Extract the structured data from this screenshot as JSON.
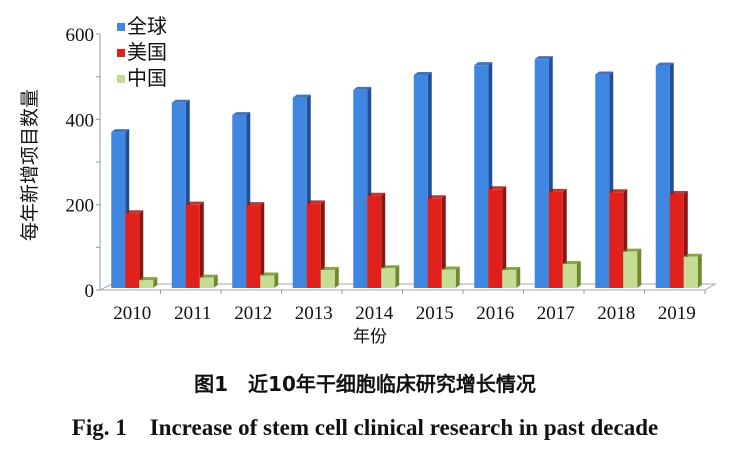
{
  "chart_data": {
    "type": "bar",
    "ylabel": "每年新增项目数量",
    "xlabel": "年份",
    "ylim": [
      0,
      600
    ],
    "yticks": [
      "0",
      "200",
      "400",
      "600"
    ],
    "categories": [
      "2010",
      "2011",
      "2012",
      "2013",
      "2014",
      "2015",
      "2016",
      "2017",
      "2018",
      "2019"
    ],
    "series": [
      {
        "name": "全球",
        "color": "#3f86e0",
        "values": [
          370,
          439,
          410,
          451,
          469,
          504,
          527,
          541,
          505,
          526
        ]
      },
      {
        "name": "美国",
        "color": "#e0201a",
        "values": [
          180,
          200,
          199,
          203,
          221,
          215,
          236,
          230,
          229,
          225
        ]
      },
      {
        "name": "中国",
        "color": "#c6dc94",
        "values": [
          23,
          29,
          34,
          47,
          51,
          48,
          47,
          61,
          90,
          78
        ]
      }
    ],
    "legend_position": "top-left",
    "grid": false
  },
  "caption": {
    "cn": "图1　近10年干细胞临床研究增长情况",
    "en": "Fig. 1　Increase of stem cell clinical research in past decade"
  }
}
